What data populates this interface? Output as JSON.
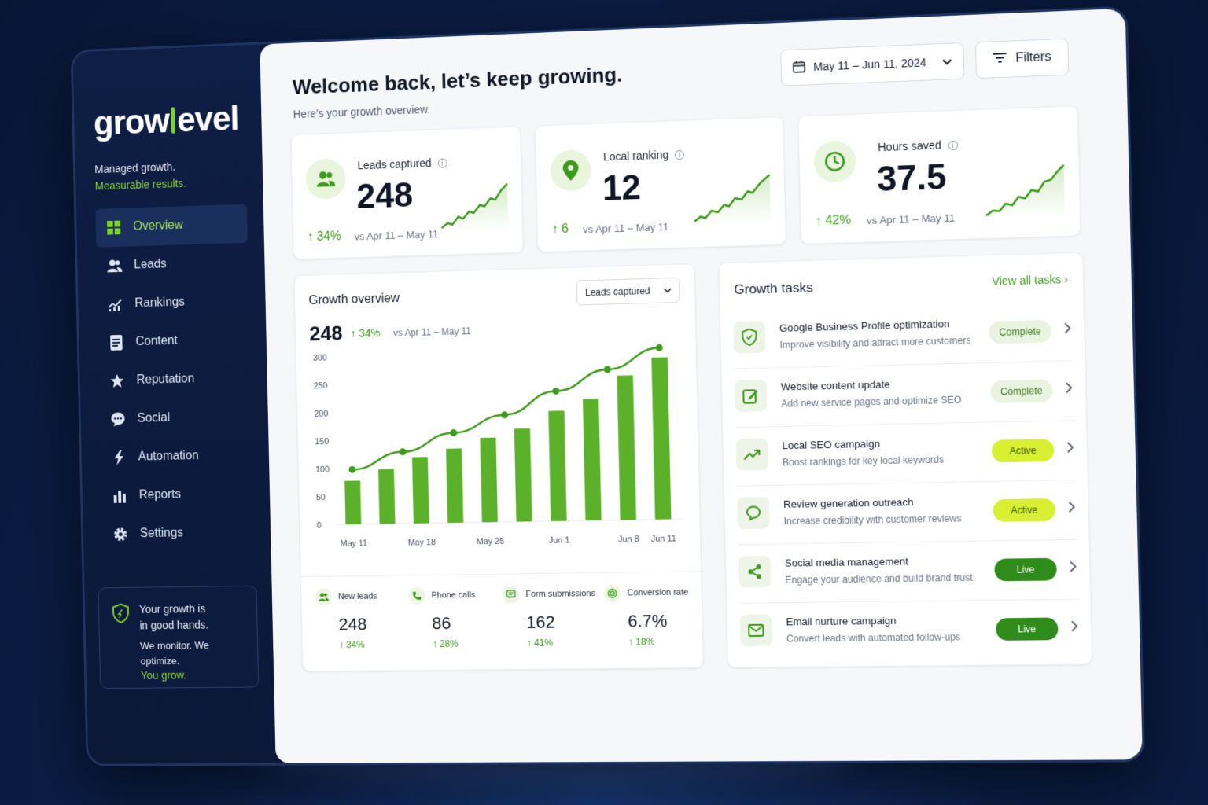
{
  "brand": {
    "logo_part1": "grow",
    "logo_part2": "evel",
    "tagline1": "Managed growth.",
    "tagline2": "Measurable results."
  },
  "sidebar": {
    "items": [
      {
        "label": "Overview",
        "icon": "grid-icon"
      },
      {
        "label": "Leads",
        "icon": "users-icon"
      },
      {
        "label": "Rankings",
        "icon": "rankings-icon"
      },
      {
        "label": "Content",
        "icon": "document-icon"
      },
      {
        "label": "Reputation",
        "icon": "star-icon"
      },
      {
        "label": "Social",
        "icon": "chat-icon"
      },
      {
        "label": "Automation",
        "icon": "bolt-icon"
      },
      {
        "label": "Reports",
        "icon": "bar-chart-icon"
      },
      {
        "label": "Settings",
        "icon": "gear-icon"
      }
    ],
    "active_index": 0,
    "promo": {
      "line1": "Your growth is",
      "line2": "in good hands.",
      "line3": "We monitor. We optimize.",
      "line4": "You grow."
    }
  },
  "header": {
    "title": "Welcome back, let’s keep growing.",
    "subtitle": "Here’s your growth overview.",
    "date_range": "May 11 – Jun 11, 2024",
    "filters_label": "Filters"
  },
  "stats": [
    {
      "label": "Leads captured",
      "value": "248",
      "delta": "↑ 34%",
      "compare": "vs Apr 11 – May 11",
      "icon": "users-icon"
    },
    {
      "label": "Local ranking",
      "value": "12",
      "delta": "↑ 6",
      "compare": "vs Apr 11 – May 11",
      "icon": "location-pin-icon"
    },
    {
      "label": "Hours saved",
      "value": "37.5",
      "delta": "↑ 42%",
      "compare": "vs Apr 11 – May 11",
      "icon": "clock-icon"
    }
  ],
  "overview": {
    "title": "Growth overview",
    "metric_select": "Leads captured",
    "value": "248",
    "delta": "↑ 34%",
    "compare": "vs Apr 11 – May 11",
    "mini_stats": [
      {
        "label": "New leads",
        "value": "248",
        "delta": "↑ 34%",
        "icon": "users-icon"
      },
      {
        "label": "Phone calls",
        "value": "86",
        "delta": "↑ 28%",
        "icon": "phone-icon"
      },
      {
        "label": "Form submissions",
        "value": "162",
        "delta": "↑ 41%",
        "icon": "form-icon"
      },
      {
        "label": "Conversion rate",
        "value": "6.7%",
        "delta": "↑ 18%",
        "icon": "target-icon"
      }
    ]
  },
  "chart_data": {
    "type": "bar",
    "title": "",
    "xlabel": "",
    "ylabel": "",
    "ylim": [
      0,
      300
    ],
    "yticks": [
      0,
      50,
      100,
      150,
      200,
      250,
      300
    ],
    "x_tick_labels": [
      "May 11",
      "May 18",
      "May 25",
      "Jun 1",
      "Jun 8",
      "Jun 11"
    ],
    "x_tick_positions": [
      0,
      2,
      4,
      6,
      8,
      9
    ],
    "series": [
      {
        "kind": "bar",
        "values": [
          78,
          98,
          118,
          132,
          150,
          165,
          195,
          215,
          255,
          285
        ]
      },
      {
        "kind": "line",
        "points": [
          [
            0,
            98
          ],
          [
            2,
            128
          ],
          [
            4,
            160
          ],
          [
            6,
            190
          ],
          [
            8,
            230
          ],
          [
            10,
            266
          ],
          [
            12,
            302
          ]
        ]
      }
    ],
    "grid": false,
    "colors": {
      "bar": "#5bb12a",
      "line": "#3e9a1c"
    }
  },
  "tasks": {
    "title": "Growth tasks",
    "view_all": "View all tasks",
    "items": [
      {
        "name": "Google Business Profile optimization",
        "desc": "Improve visibility and attract more customers",
        "status": "Complete",
        "icon": "shield-icon"
      },
      {
        "name": "Website content update",
        "desc": "Add new service pages and optimize SEO",
        "status": "Complete",
        "icon": "edit-icon"
      },
      {
        "name": "Local SEO campaign",
        "desc": "Boost rankings for key local keywords",
        "status": "Active",
        "icon": "trend-up-icon"
      },
      {
        "name": "Review generation outreach",
        "desc": "Increase credibility with customer reviews",
        "status": "Active",
        "icon": "message-icon"
      },
      {
        "name": "Social media management",
        "desc": "Engage your audience and build brand trust",
        "status": "Live",
        "icon": "share-icon"
      },
      {
        "name": "Email nurture campaign",
        "desc": "Convert leads with automated follow-ups",
        "status": "Live",
        "icon": "mail-icon"
      }
    ]
  }
}
